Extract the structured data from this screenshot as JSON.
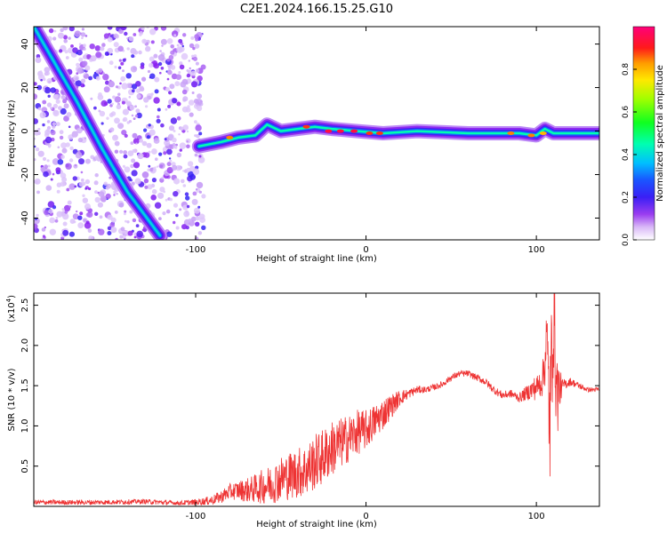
{
  "figure_title": "C2E1.2024.166.15.25.G10",
  "chart_data": [
    {
      "type": "heatmap",
      "xlabel": "Height of straight line (km)",
      "ylabel": "Frequency (Hz)",
      "xlim": [
        -195,
        137
      ],
      "ylim": [
        -50,
        48
      ],
      "x_ticks": [
        -100,
        0,
        100
      ],
      "y_ticks": [
        -40,
        -20,
        0,
        20,
        40
      ],
      "colorbar": {
        "label": "Normalized spectral amplitude",
        "range": [
          0.0,
          1.0
        ],
        "ticks": [
          0.0,
          0.2,
          0.4,
          0.6,
          0.8
        ],
        "colormap": [
          "#ffffff",
          "#c9a3f7",
          "#8a1ff0",
          "#3a1ff5",
          "#1a4dff",
          "#00b8ff",
          "#00ffb0",
          "#10ff20",
          "#a0ff00",
          "#ffe800",
          "#ff9a00",
          "#ff1a1a",
          "#ff007a"
        ]
      },
      "ridges": [
        {
          "x": [
            -195,
            -170,
            -155,
            -140,
            -121
          ],
          "y": [
            48,
            14,
            -8,
            -28,
            -48
          ],
          "amplitude": 0.45
        },
        {
          "x": [
            -98,
            -85,
            -75,
            -65,
            -58,
            -50,
            -40,
            -30,
            -20,
            -5,
            10,
            30,
            60,
            90,
            100,
            105,
            110,
            137
          ],
          "y": [
            -7,
            -5,
            -3,
            -2,
            3,
            0,
            1,
            2,
            1,
            0,
            -1,
            0,
            -1,
            -1,
            -2,
            1,
            -1,
            -1
          ],
          "amplitude": 0.5
        }
      ],
      "ridge_hotspots": [
        {
          "x": -80,
          "y": -3,
          "amplitude": 0.85
        },
        {
          "x": -35,
          "y": 2,
          "amplitude": 0.9
        },
        {
          "x": -22,
          "y": 0,
          "amplitude": 0.95
        },
        {
          "x": -15,
          "y": 0,
          "amplitude": 0.95
        },
        {
          "x": -7,
          "y": 0,
          "amplitude": 0.95
        },
        {
          "x": 2,
          "y": -1,
          "amplitude": 0.9
        },
        {
          "x": 8,
          "y": -1,
          "amplitude": 0.9
        },
        {
          "x": 85,
          "y": -1,
          "amplitude": 0.85
        },
        {
          "x": 97,
          "y": -2,
          "amplitude": 0.85
        },
        {
          "x": 104,
          "y": -1,
          "amplitude": 0.8
        }
      ]
    },
    {
      "type": "line",
      "xlabel": "Height of straight line (km)",
      "ylabel": "SNR (10 * v/v)",
      "y_multiplier_label": "(x10",
      "y_multiplier_exp": "4",
      "y_multiplier_close": ")",
      "xlim": [
        -195,
        137
      ],
      "ylim": [
        0,
        2.65
      ],
      "x_ticks": [
        -100,
        0,
        100
      ],
      "y_ticks": [
        "0.5",
        "1.0",
        "1.5",
        "2.0",
        "2.5"
      ],
      "color": "#ee3333",
      "series": [
        {
          "x": [
            -195,
            -160,
            -130,
            -110,
            -100,
            -95,
            -90,
            -85,
            -80,
            -75,
            -70,
            -65,
            -60,
            -55,
            -50,
            -45,
            -40,
            -35,
            -30,
            -25,
            -20,
            -15,
            -10,
            -5,
            0,
            5,
            10,
            15,
            20,
            25,
            30,
            35,
            40,
            45,
            50,
            55,
            60,
            65,
            70,
            75,
            80,
            85,
            90,
            95,
            98,
            101,
            104,
            106,
            108,
            110,
            112,
            115,
            120,
            125,
            130,
            137
          ],
          "y": [
            0.05,
            0.05,
            0.06,
            0.04,
            0.05,
            0.06,
            0.08,
            0.12,
            0.18,
            0.2,
            0.2,
            0.22,
            0.25,
            0.28,
            0.35,
            0.38,
            0.42,
            0.45,
            0.55,
            0.62,
            0.72,
            0.78,
            0.85,
            0.92,
            0.95,
            1.05,
            1.15,
            1.25,
            1.35,
            1.4,
            1.45,
            1.45,
            1.48,
            1.52,
            1.6,
            1.65,
            1.65,
            1.6,
            1.55,
            1.45,
            1.38,
            1.4,
            1.35,
            1.42,
            1.45,
            1.5,
            1.6,
            2.1,
            1.0,
            2.6,
            1.4,
            1.5,
            1.55,
            1.5,
            1.45,
            1.45
          ],
          "noise_half_range": [
            0.03,
            0.03,
            0.03,
            0.03,
            0.04,
            0.05,
            0.06,
            0.08,
            0.1,
            0.12,
            0.15,
            0.18,
            0.22,
            0.25,
            0.28,
            0.3,
            0.32,
            0.33,
            0.35,
            0.35,
            0.35,
            0.32,
            0.3,
            0.28,
            0.25,
            0.22,
            0.2,
            0.15,
            0.1,
            0.06,
            0.05,
            0.04,
            0.04,
            0.04,
            0.04,
            0.04,
            0.04,
            0.04,
            0.05,
            0.05,
            0.05,
            0.05,
            0.06,
            0.1,
            0.15,
            0.15,
            0.25,
            0.5,
            0.9,
            0.9,
            0.6,
            0.08,
            0.05,
            0.04,
            0.03,
            0.03
          ]
        }
      ]
    }
  ]
}
